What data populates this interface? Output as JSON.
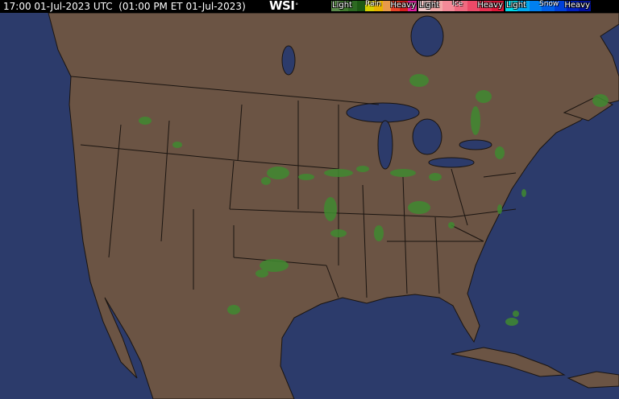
{
  "header": {
    "timestamp": "17:00 01-Jul-2023 UTC  (01:00 PM ET 01-Jul-2023)",
    "logo": "WSI",
    "logo_mark": "°"
  },
  "legend": {
    "rain": {
      "title": "Rain",
      "light": "Light",
      "heavy": "Heavy",
      "colors": [
        "#5a8a4a",
        "#3f7a2e",
        "#2d6a22",
        "#1d5a14",
        "#d6d000",
        "#e8b400",
        "#e89a4a",
        "#e8442a",
        "#d82020",
        "#e020a0"
      ]
    },
    "ice": {
      "title": "Ice",
      "light": "Light",
      "heavy": "Heavy",
      "colors": [
        "#f4c8c8",
        "#f4a8a8",
        "#f48a98",
        "#f06a80",
        "#ec4a68",
        "#e83050",
        "#e01838"
      ]
    },
    "snow": {
      "title": "Snow",
      "light": "Light",
      "heavy": "Heavy",
      "colors": [
        "#00d8e8",
        "#00a8f0",
        "#0080f0",
        "#0060e8",
        "#0040d8",
        "#0020c0",
        "#0010a0"
      ]
    }
  },
  "map": {
    "ocean_color": "#2c3b6b",
    "land_color": "#6b5444",
    "border_color": "#1a1410",
    "precip_color": "#3f8a30"
  }
}
